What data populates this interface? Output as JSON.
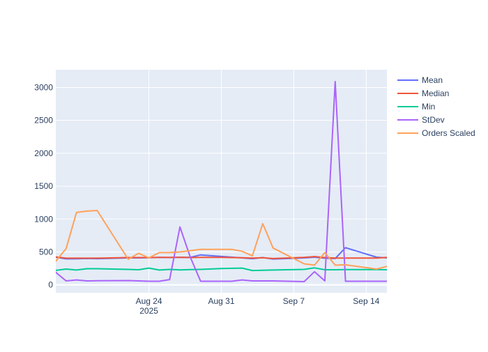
{
  "chart_data": {
    "type": "line",
    "title": "",
    "xlabel": "",
    "ylabel": "",
    "x_range": [
      "2025-08-15",
      "2025-09-16"
    ],
    "ylim": [
      -120,
      3270
    ],
    "x_ticks": [
      {
        "date": "2025-08-24",
        "label": "Aug 24",
        "sublabel": "2025"
      },
      {
        "date": "2025-08-31",
        "label": "Aug 31",
        "sublabel": ""
      },
      {
        "date": "2025-09-07",
        "label": "Sep 7",
        "sublabel": ""
      },
      {
        "date": "2025-09-14",
        "label": "Sep 14",
        "sublabel": ""
      }
    ],
    "y_ticks": [
      0,
      500,
      1000,
      1500,
      2000,
      2500,
      3000
    ],
    "grid": true,
    "legend_position": "top-right",
    "plot_background": "#e5ecf6",
    "series": [
      {
        "name": "Mean",
        "color": "#636efa",
        "x": [
          "2025-08-15",
          "2025-08-16",
          "2025-08-17",
          "2025-08-18",
          "2025-08-19",
          "2025-08-22",
          "2025-08-23",
          "2025-08-24",
          "2025-08-25",
          "2025-08-26",
          "2025-08-27",
          "2025-08-28",
          "2025-08-29",
          "2025-08-31",
          "2025-09-02",
          "2025-09-03",
          "2025-09-04",
          "2025-09-05",
          "2025-09-08",
          "2025-09-09",
          "2025-09-10",
          "2025-09-11",
          "2025-09-12",
          "2025-09-15",
          "2025-09-16"
        ],
        "y": [
          420,
          395,
          397,
          400,
          398,
          410,
          410,
          412,
          418,
          415,
          419,
          418,
          455,
          432,
          410,
          398,
          415,
          393,
          410,
          420,
          405,
          400,
          565,
          420,
          410
        ]
      },
      {
        "name": "Median",
        "color": "#ef553b",
        "x": [
          "2025-08-15",
          "2025-08-16",
          "2025-08-17",
          "2025-08-18",
          "2025-08-19",
          "2025-08-22",
          "2025-08-23",
          "2025-08-24",
          "2025-08-25",
          "2025-08-26",
          "2025-08-27",
          "2025-08-28",
          "2025-08-29",
          "2025-08-31",
          "2025-09-02",
          "2025-09-03",
          "2025-09-04",
          "2025-09-05",
          "2025-09-08",
          "2025-09-09",
          "2025-09-10",
          "2025-09-11",
          "2025-09-12",
          "2025-09-15",
          "2025-09-16"
        ],
        "y": [
          425,
          405,
          405,
          405,
          405,
          415,
          415,
          415,
          418,
          418,
          418,
          415,
          418,
          418,
          412,
          408,
          412,
          400,
          418,
          430,
          415,
          408,
          408,
          408,
          418
        ]
      },
      {
        "name": "Min",
        "color": "#00cc96",
        "x": [
          "2025-08-15",
          "2025-08-16",
          "2025-08-17",
          "2025-08-18",
          "2025-08-19",
          "2025-08-22",
          "2025-08-23",
          "2025-08-24",
          "2025-08-25",
          "2025-08-26",
          "2025-08-27",
          "2025-08-28",
          "2025-08-29",
          "2025-08-31",
          "2025-09-02",
          "2025-09-03",
          "2025-09-04",
          "2025-09-05",
          "2025-09-08",
          "2025-09-09",
          "2025-09-10",
          "2025-09-11",
          "2025-09-12",
          "2025-09-15",
          "2025-09-16"
        ],
        "y": [
          220,
          240,
          225,
          245,
          245,
          235,
          230,
          255,
          225,
          235,
          228,
          232,
          235,
          248,
          255,
          218,
          222,
          225,
          235,
          258,
          230,
          230,
          232,
          232,
          230
        ]
      },
      {
        "name": "StDev",
        "color": "#ab63fa",
        "x": [
          "2025-08-15",
          "2025-08-16",
          "2025-08-17",
          "2025-08-18",
          "2025-08-19",
          "2025-08-22",
          "2025-08-23",
          "2025-08-24",
          "2025-08-25",
          "2025-08-26",
          "2025-08-27",
          "2025-08-28",
          "2025-08-29",
          "2025-09-01",
          "2025-09-02",
          "2025-09-03",
          "2025-09-04",
          "2025-09-05",
          "2025-09-08",
          "2025-09-09",
          "2025-09-10",
          "2025-09-11",
          "2025-09-12",
          "2025-09-15",
          "2025-09-16"
        ],
        "y": [
          190,
          60,
          75,
          60,
          62,
          65,
          60,
          55,
          55,
          80,
          880,
          420,
          55,
          55,
          75,
          60,
          60,
          60,
          50,
          200,
          60,
          3090,
          55,
          55,
          55
        ]
      },
      {
        "name": "Orders Scaled",
        "color": "#ffa15a",
        "x": [
          "2025-08-15",
          "2025-08-16",
          "2025-08-17",
          "2025-08-18",
          "2025-08-19",
          "2025-08-22",
          "2025-08-23",
          "2025-08-24",
          "2025-08-25",
          "2025-08-26",
          "2025-08-27",
          "2025-08-28",
          "2025-08-29",
          "2025-09-01",
          "2025-09-02",
          "2025-09-03",
          "2025-09-04",
          "2025-09-05",
          "2025-09-08",
          "2025-09-09",
          "2025-09-10",
          "2025-09-11",
          "2025-09-12",
          "2025-09-15",
          "2025-09-16"
        ],
        "y": [
          360,
          550,
          1100,
          1120,
          1130,
          390,
          480,
          410,
          490,
          490,
          500,
          520,
          540,
          540,
          510,
          440,
          930,
          560,
          320,
          300,
          490,
          300,
          305,
          240,
          280
        ]
      }
    ]
  }
}
